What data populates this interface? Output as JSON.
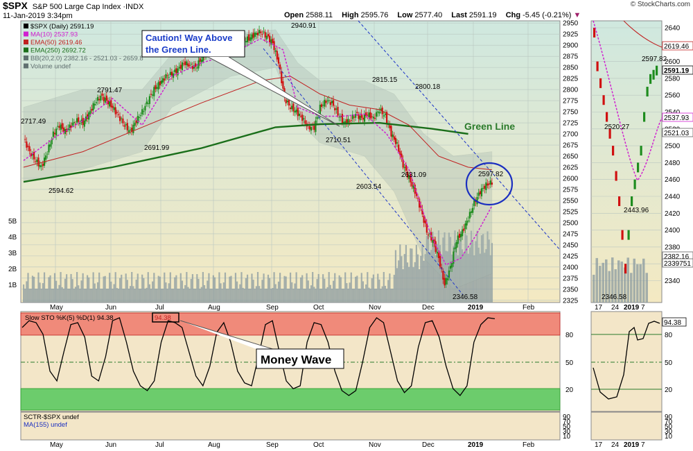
{
  "header": {
    "symbol": "$SPX",
    "name": "S&P 500 Large Cap Index",
    "exchange": "INDX",
    "date": "11-Jan-2019 3:34pm",
    "brand": "© StockCharts.com",
    "open_label": "Open",
    "open": "2588.11",
    "high_label": "High",
    "high": "2595.76",
    "low_label": "Low",
    "low": "2577.40",
    "last_label": "Last",
    "last": "2591.19",
    "chg_label": "Chg",
    "chg": "-5.45 (-0.21%)"
  },
  "legend": {
    "price": "$SPX (Daily) 2591.19",
    "ma10": "MA(10) 2537.93",
    "ema50": "EMA(50) 2619.46",
    "ema250": "EMA(250) 2692.72",
    "bb": "BB(20,2.0) 2382.16 - 2521.03 - 2659.8",
    "volume": "Volume undef",
    "sto": "Slow STO %K(5) %D(1) 94.38",
    "sto_box": "94.38",
    "sctr": "SCTR-$SPX undef",
    "ma155": "MA(155) undef"
  },
  "colors": {
    "ma10": "#d020d0",
    "ema50": "#c02020",
    "ema250": "#1a6e1a",
    "up": "#1e8c1e",
    "down": "#d01010",
    "bb_band": "#a8b8b0",
    "volume": "#8a9aa0",
    "channel": "#2038c8",
    "sto_top": "#f08a7a",
    "sto_bottom": "#6ccc6c"
  },
  "annotations": {
    "caution": [
      "Caution! Way Above",
      "the Green Line."
    ],
    "green_line": "Green Line",
    "money_wave": "Money Wave"
  },
  "chart_data": {
    "type": "candlestick",
    "price_axis": {
      "min": 2325,
      "max": 2950,
      "ticks": [
        2950,
        2925,
        2900,
        2875,
        2850,
        2825,
        2800,
        2775,
        2750,
        2725,
        2700,
        2675,
        2650,
        2625,
        2600,
        2575,
        2550,
        2525,
        2500,
        2475,
        2450,
        2425,
        2400,
        2375,
        2350,
        2325
      ]
    },
    "price_labels": [
      "2950",
      "2925",
      "2900",
      "2875",
      "2850",
      "2825",
      "2800",
      "2775",
      "2750",
      "2725",
      "2700",
      "2675",
      "2650",
      "2625",
      "2600",
      "2575",
      "2550",
      "2525",
      "2500",
      "2475",
      "2450",
      "2425",
      "2400",
      "2375",
      "2350",
      "2325"
    ],
    "volume_axis_labels": [
      "5B",
      "4B",
      "3B",
      "2B",
      "1B"
    ],
    "months": [
      "May",
      "Jun",
      "Jul",
      "Aug",
      "Sep",
      "Oct",
      "Nov",
      "Dec",
      "2019",
      "Feb"
    ],
    "value_labels": [
      "2717.49",
      "2594.62",
      "2791.47",
      "2691.99",
      "2940.91",
      "2710.51",
      "2815.15",
      "2603.54",
      "2800.18",
      "2631.09",
      "2597.82",
      "2346.58"
    ],
    "close_path": [
      [
        0,
        2690
      ],
      [
        4,
        2660
      ],
      [
        8,
        2640
      ],
      [
        12,
        2625
      ],
      [
        16,
        2660
      ],
      [
        20,
        2700
      ],
      [
        24,
        2720
      ],
      [
        28,
        2705
      ],
      [
        32,
        2720
      ],
      [
        36,
        2730
      ],
      [
        40,
        2725
      ],
      [
        44,
        2745
      ],
      [
        48,
        2770
      ],
      [
        52,
        2785
      ],
      [
        56,
        2775
      ],
      [
        60,
        2760
      ],
      [
        64,
        2740
      ],
      [
        68,
        2720
      ],
      [
        72,
        2705
      ],
      [
        76,
        2730
      ],
      [
        80,
        2750
      ],
      [
        84,
        2775
      ],
      [
        88,
        2800
      ],
      [
        92,
        2815
      ],
      [
        96,
        2830
      ],
      [
        100,
        2835
      ],
      [
        104,
        2845
      ],
      [
        108,
        2860
      ],
      [
        112,
        2855
      ],
      [
        116,
        2850
      ],
      [
        120,
        2870
      ],
      [
        124,
        2890
      ],
      [
        128,
        2905
      ],
      [
        132,
        2910
      ],
      [
        136,
        2895
      ],
      [
        140,
        2890
      ],
      [
        144,
        2905
      ],
      [
        148,
        2910
      ],
      [
        152,
        2915
      ],
      [
        156,
        2925
      ],
      [
        160,
        2930
      ],
      [
        164,
        2920
      ],
      [
        168,
        2905
      ],
      [
        172,
        2860
      ],
      [
        176,
        2780
      ],
      [
        180,
        2760
      ],
      [
        184,
        2750
      ],
      [
        188,
        2735
      ],
      [
        192,
        2715
      ],
      [
        196,
        2715
      ],
      [
        200,
        2760
      ],
      [
        204,
        2775
      ],
      [
        208,
        2770
      ],
      [
        212,
        2745
      ],
      [
        216,
        2725
      ],
      [
        220,
        2730
      ],
      [
        224,
        2745
      ],
      [
        228,
        2735
      ],
      [
        232,
        2745
      ],
      [
        236,
        2735
      ],
      [
        240,
        2755
      ],
      [
        244,
        2740
      ],
      [
        248,
        2700
      ],
      [
        252,
        2675
      ],
      [
        256,
        2630
      ],
      [
        260,
        2600
      ],
      [
        264,
        2570
      ],
      [
        268,
        2530
      ],
      [
        272,
        2480
      ],
      [
        276,
        2460
      ],
      [
        280,
        2420
      ],
      [
        284,
        2360
      ],
      [
        288,
        2400
      ],
      [
        292,
        2460
      ],
      [
        296,
        2480
      ],
      [
        300,
        2510
      ],
      [
        304,
        2545
      ],
      [
        308,
        2570
      ],
      [
        312,
        2585
      ],
      [
        316,
        2591
      ]
    ],
    "ema250_path": [
      [
        0,
        2592
      ],
      [
        60,
        2625
      ],
      [
        120,
        2668
      ],
      [
        170,
        2715
      ],
      [
        200,
        2722
      ],
      [
        240,
        2725
      ],
      [
        275,
        2712
      ],
      [
        300,
        2700
      ]
    ],
    "ema50_path": [
      [
        0,
        2625
      ],
      [
        40,
        2660
      ],
      [
        80,
        2715
      ],
      [
        120,
        2770
      ],
      [
        160,
        2820
      ],
      [
        180,
        2830
      ],
      [
        200,
        2790
      ],
      [
        220,
        2765
      ],
      [
        240,
        2755
      ],
      [
        260,
        2720
      ],
      [
        280,
        2650
      ],
      [
        300,
        2625
      ],
      [
        316,
        2619
      ]
    ],
    "ma10_path": [
      [
        0,
        2640
      ],
      [
        20,
        2690
      ],
      [
        40,
        2730
      ],
      [
        60,
        2780
      ],
      [
        80,
        2720
      ],
      [
        100,
        2830
      ],
      [
        120,
        2860
      ],
      [
        140,
        2880
      ],
      [
        160,
        2915
      ],
      [
        175,
        2890
      ],
      [
        185,
        2760
      ],
      [
        200,
        2740
      ],
      [
        215,
        2740
      ],
      [
        230,
        2745
      ],
      [
        245,
        2700
      ],
      [
        260,
        2620
      ],
      [
        275,
        2470
      ],
      [
        285,
        2405
      ],
      [
        295,
        2420
      ],
      [
        305,
        2470
      ],
      [
        316,
        2538
      ]
    ],
    "bb_upper_path": [
      [
        0,
        2760
      ],
      [
        40,
        2800
      ],
      [
        80,
        2800
      ],
      [
        100,
        2880
      ],
      [
        140,
        2925
      ],
      [
        170,
        2935
      ],
      [
        185,
        2860
      ],
      [
        200,
        2820
      ],
      [
        230,
        2820
      ],
      [
        250,
        2790
      ],
      [
        270,
        2700
      ],
      [
        290,
        2650
      ],
      [
        316,
        2660
      ]
    ],
    "bb_lower_path": [
      [
        0,
        2590
      ],
      [
        40,
        2620
      ],
      [
        80,
        2660
      ],
      [
        100,
        2760
      ],
      [
        140,
        2830
      ],
      [
        170,
        2850
      ],
      [
        185,
        2730
      ],
      [
        200,
        2680
      ],
      [
        230,
        2650
      ],
      [
        250,
        2570
      ],
      [
        270,
        2420
      ],
      [
        290,
        2350
      ],
      [
        316,
        2385
      ]
    ],
    "sto_axis_labels": [
      "80",
      "50",
      "20"
    ],
    "sto_k": [
      85,
      92,
      90,
      78,
      40,
      30,
      60,
      88,
      90,
      75,
      35,
      30,
      55,
      92,
      95,
      70,
      40,
      25,
      20,
      30,
      70,
      92,
      90,
      85,
      60,
      35,
      25,
      45,
      80,
      90,
      70,
      40,
      28,
      25,
      55,
      88,
      92,
      60,
      30,
      22,
      25,
      70,
      90,
      88,
      70,
      40,
      20,
      15,
      20,
      50,
      85,
      95,
      90,
      60,
      30,
      18,
      25,
      65,
      90,
      92,
      75,
      45,
      22,
      15,
      25,
      70,
      88,
      95,
      94
    ],
    "sctr_axis_labels": [
      "90",
      "70",
      "50",
      "30",
      "10"
    ],
    "inset": {
      "price_labels": [
        "2640",
        "2620",
        "2600",
        "2580",
        "2560",
        "2540",
        "2520",
        "2500",
        "2480",
        "2460",
        "2440",
        "2420",
        "2400",
        "2380",
        "2360",
        "2340"
      ],
      "value_labels": [
        "2597.82",
        "2520.27",
        "2443.96",
        "2346.58"
      ],
      "tags": [
        "2619.46",
        "2591.19",
        "2537.93",
        "2521.03",
        "2382.16",
        "2339751"
      ],
      "x_labels": [
        "17",
        "24",
        "2019",
        "7"
      ],
      "sto_tag": "94.38",
      "sto_labels": [
        "80",
        "50",
        "20"
      ],
      "sctr_labels": [
        "90",
        "70",
        "50",
        "30",
        "10"
      ]
    }
  }
}
